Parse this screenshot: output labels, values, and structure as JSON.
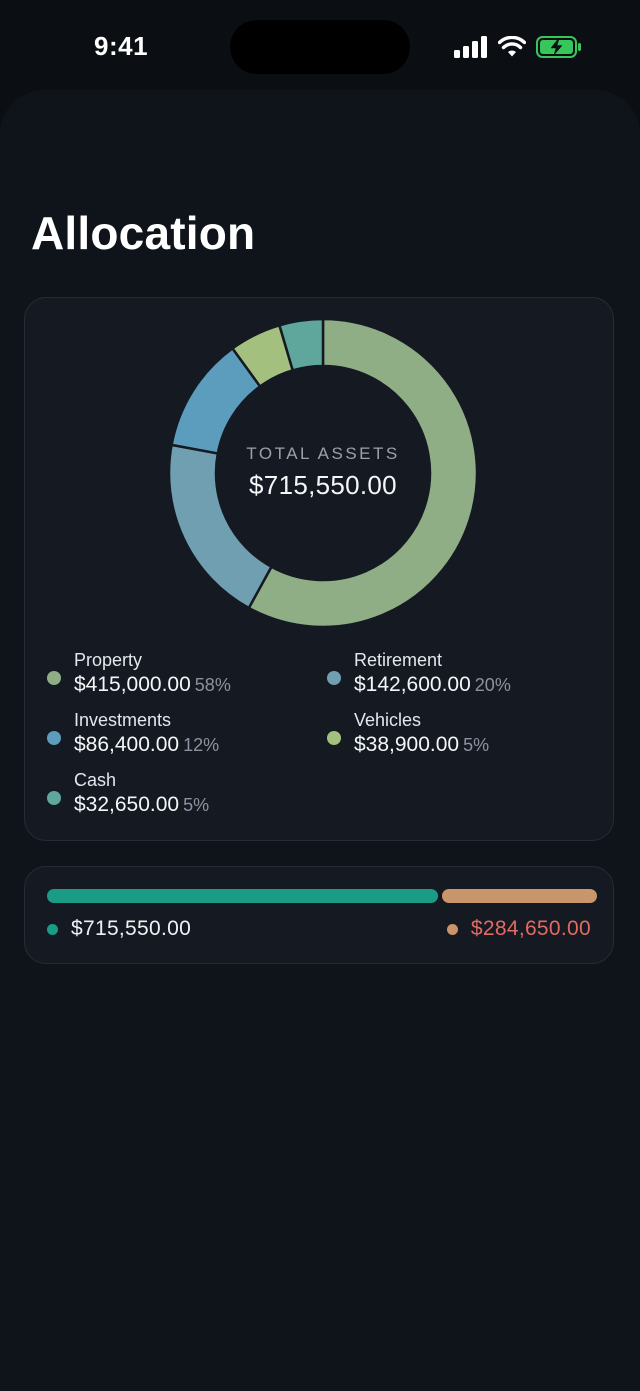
{
  "status_bar": {
    "time": "9:41",
    "icons": [
      "cellular-signal-icon",
      "wifi-icon",
      "battery-charging-icon"
    ]
  },
  "page": {
    "title": "Allocation"
  },
  "allocation": {
    "center_label": "TOTAL ASSETS",
    "center_value": "$715,550.00",
    "items": [
      {
        "name": "Property",
        "amount": "$415,000.00",
        "percent": "58%",
        "value": 415000,
        "color": "#8fae86"
      },
      {
        "name": "Retirement",
        "amount": "$142,600.00",
        "percent": "20%",
        "value": 142600,
        "color": "#6f9fb0"
      },
      {
        "name": "Investments",
        "amount": "$86,400.00",
        "percent": "12%",
        "value": 86400,
        "color": "#5c9dbd"
      },
      {
        "name": "Vehicles",
        "amount": "$38,900.00",
        "percent": "5%",
        "value": 38900,
        "color": "#a3c07f"
      },
      {
        "name": "Cash",
        "amount": "$32,650.00",
        "percent": "5%",
        "value": 32650,
        "color": "#5fa79c"
      }
    ]
  },
  "net_worth": {
    "assets_value": "$715,550.00",
    "assets_amount": 715550,
    "assets_color": "#1a9b86",
    "liabilities_value": "$284,650.00",
    "liabilities_amount": 284650,
    "liabilities_color": "#c9956a",
    "liabilities_text_color": "#e36a62"
  }
}
